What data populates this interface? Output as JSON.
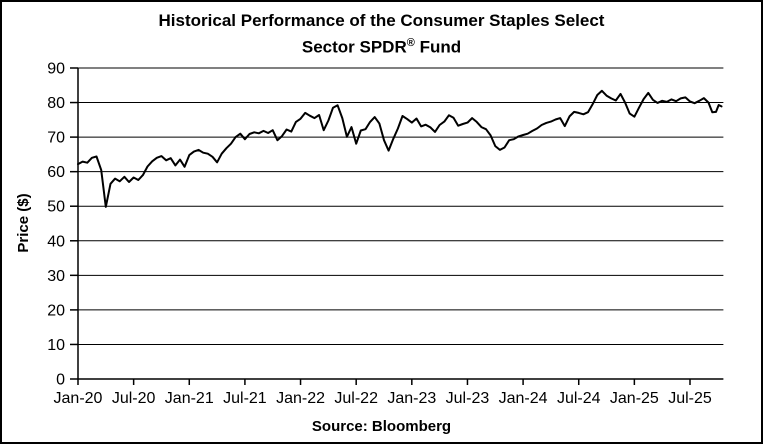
{
  "title": {
    "line1": "Historical Performance of the Consumer Staples Select",
    "line2": "Sector SPDR",
    "line2_sup": "®",
    "line2_end": " Fund"
  },
  "footer": {
    "source": "Source: Bloomberg"
  },
  "colors": {
    "line": "#000000",
    "grid": "#000000",
    "axis": "#000000",
    "background": "#ffffff"
  },
  "chart_data": {
    "type": "line",
    "title": "Historical Performance of the Consumer Staples Select Sector SPDR® Fund",
    "xlabel": "",
    "ylabel": "Price ($)",
    "ylim": [
      0,
      90
    ],
    "y_ticks": [
      0,
      10,
      20,
      30,
      40,
      50,
      60,
      70,
      80,
      90
    ],
    "x_tick_labels": [
      "Jan-20",
      "Jul-20",
      "Jan-21",
      "Jul-21",
      "Jan-22",
      "Jul-22",
      "Jan-23",
      "Jul-23",
      "Jan-24",
      "Jul-24",
      "Jan-25",
      "Jul-25"
    ],
    "x_tick_months": [
      0,
      6,
      12,
      18,
      24,
      30,
      36,
      42,
      48,
      54,
      60,
      66
    ],
    "x_domain_months": [
      0,
      69.6
    ],
    "grid": "horizontal",
    "legend": "none",
    "source": "Source: Bloomberg",
    "series": [
      {
        "name": "Consumer Staples Select Sector SPDR Fund price",
        "points": [
          [
            0,
            62.2
          ],
          [
            0.5,
            62.9
          ],
          [
            1,
            62.6
          ],
          [
            1.5,
            64.0
          ],
          [
            2,
            64.4
          ],
          [
            2.5,
            60.5
          ],
          [
            3,
            49.8
          ],
          [
            3.5,
            56.5
          ],
          [
            4,
            58.0
          ],
          [
            4.5,
            57.2
          ],
          [
            5,
            58.5
          ],
          [
            5.5,
            57.0
          ],
          [
            6,
            58.3
          ],
          [
            6.5,
            57.6
          ],
          [
            7,
            59.0
          ],
          [
            7.5,
            61.5
          ],
          [
            8,
            63.0
          ],
          [
            8.5,
            64.0
          ],
          [
            9,
            64.5
          ],
          [
            9.5,
            63.3
          ],
          [
            10,
            63.9
          ],
          [
            10.5,
            61.8
          ],
          [
            11,
            63.5
          ],
          [
            11.5,
            61.4
          ],
          [
            12,
            64.8
          ],
          [
            12.5,
            65.8
          ],
          [
            13,
            66.3
          ],
          [
            13.5,
            65.5
          ],
          [
            14,
            65.2
          ],
          [
            14.5,
            64.3
          ],
          [
            15,
            62.7
          ],
          [
            15.5,
            65.2
          ],
          [
            16,
            66.8
          ],
          [
            16.5,
            68.1
          ],
          [
            17,
            70.0
          ],
          [
            17.5,
            71.0
          ],
          [
            18,
            69.4
          ],
          [
            18.5,
            70.9
          ],
          [
            19,
            71.4
          ],
          [
            19.5,
            71.1
          ],
          [
            20,
            71.8
          ],
          [
            20.5,
            71.2
          ],
          [
            21,
            72.0
          ],
          [
            21.5,
            69.1
          ],
          [
            22,
            70.3
          ],
          [
            22.5,
            72.2
          ],
          [
            23,
            71.6
          ],
          [
            23.5,
            74.4
          ],
          [
            24,
            75.3
          ],
          [
            24.5,
            77.0
          ],
          [
            25,
            76.2
          ],
          [
            25.5,
            75.5
          ],
          [
            26,
            76.4
          ],
          [
            26.5,
            72.0
          ],
          [
            27,
            74.8
          ],
          [
            27.5,
            78.5
          ],
          [
            28,
            79.2
          ],
          [
            28.5,
            75.5
          ],
          [
            29,
            70.1
          ],
          [
            29.5,
            72.9
          ],
          [
            30,
            68.1
          ],
          [
            30.5,
            71.9
          ],
          [
            31,
            72.3
          ],
          [
            31.5,
            74.4
          ],
          [
            32,
            75.8
          ],
          [
            32.5,
            73.9
          ],
          [
            33,
            69.1
          ],
          [
            33.5,
            66.1
          ],
          [
            34,
            69.5
          ],
          [
            34.5,
            72.5
          ],
          [
            35,
            76.1
          ],
          [
            35.5,
            75.2
          ],
          [
            36,
            74.2
          ],
          [
            36.5,
            75.4
          ],
          [
            37,
            73.1
          ],
          [
            37.5,
            73.6
          ],
          [
            38,
            72.8
          ],
          [
            38.5,
            71.5
          ],
          [
            39,
            73.5
          ],
          [
            39.5,
            74.5
          ],
          [
            40,
            76.3
          ],
          [
            40.5,
            75.6
          ],
          [
            41,
            73.3
          ],
          [
            41.5,
            73.8
          ],
          [
            42,
            74.2
          ],
          [
            42.5,
            75.5
          ],
          [
            43,
            74.4
          ],
          [
            43.5,
            72.9
          ],
          [
            44,
            72.3
          ],
          [
            44.5,
            70.5
          ],
          [
            45,
            67.4
          ],
          [
            45.5,
            66.3
          ],
          [
            46,
            67.0
          ],
          [
            46.5,
            69.1
          ],
          [
            47,
            69.4
          ],
          [
            47.5,
            70.2
          ],
          [
            48,
            70.6
          ],
          [
            48.5,
            71.0
          ],
          [
            49,
            71.8
          ],
          [
            49.5,
            72.5
          ],
          [
            50,
            73.5
          ],
          [
            50.5,
            74.1
          ],
          [
            51,
            74.5
          ],
          [
            51.5,
            75.1
          ],
          [
            52,
            75.5
          ],
          [
            52.5,
            73.2
          ],
          [
            53,
            76.0
          ],
          [
            53.5,
            77.3
          ],
          [
            54,
            77.0
          ],
          [
            54.5,
            76.6
          ],
          [
            55,
            77.2
          ],
          [
            55.5,
            79.5
          ],
          [
            56,
            82.2
          ],
          [
            56.5,
            83.4
          ],
          [
            57,
            82.0
          ],
          [
            57.5,
            81.2
          ],
          [
            58,
            80.6
          ],
          [
            58.5,
            82.5
          ],
          [
            59,
            80.0
          ],
          [
            59.5,
            76.8
          ],
          [
            60,
            75.9
          ],
          [
            60.5,
            78.5
          ],
          [
            61,
            81.0
          ],
          [
            61.5,
            82.8
          ],
          [
            62,
            80.8
          ],
          [
            62.5,
            79.9
          ],
          [
            63,
            80.5
          ],
          [
            63.5,
            80.2
          ],
          [
            64,
            80.9
          ],
          [
            64.5,
            80.4
          ],
          [
            65,
            81.2
          ],
          [
            65.5,
            81.5
          ],
          [
            66,
            80.3
          ],
          [
            66.5,
            79.8
          ],
          [
            67,
            80.5
          ],
          [
            67.5,
            81.3
          ],
          [
            68,
            80.0
          ],
          [
            68.4,
            77.2
          ],
          [
            68.8,
            77.3
          ],
          [
            69.1,
            79.3
          ],
          [
            69.4,
            78.9
          ]
        ]
      }
    ]
  }
}
